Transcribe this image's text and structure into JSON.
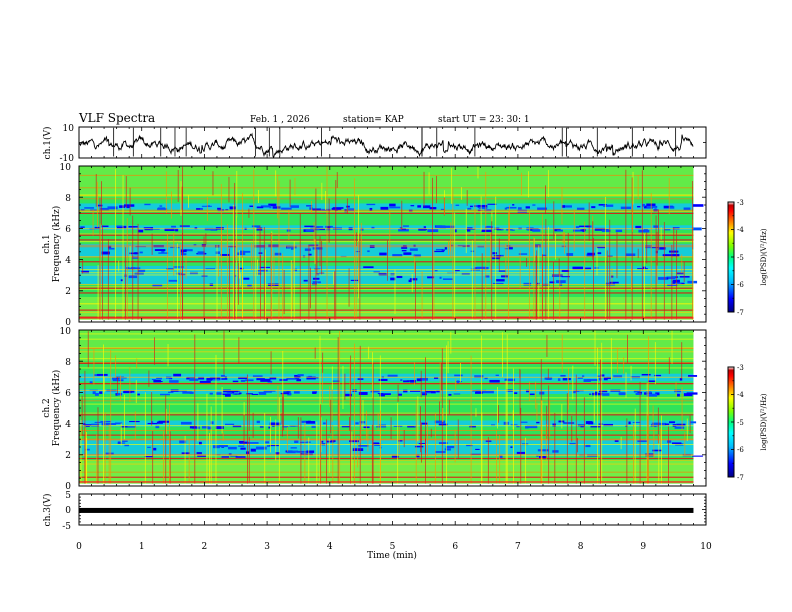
{
  "header": {
    "title": "VLF Spectra",
    "date": "Feb. 1 , 2026",
    "station": "station= KAP",
    "start": "start UT = 23: 30: 1"
  },
  "colors": {
    "spectrogram_base": "#2fe35a",
    "colormap": [
      "#000080",
      "#0000ff",
      "#00bfff",
      "#00ffff",
      "#00ff7f",
      "#7fff00",
      "#ffff00",
      "#ff7f00",
      "#ff0000",
      "#c00000",
      "#ffffff"
    ]
  },
  "chart_data": [
    {
      "name": "ch1-waveform",
      "type": "line",
      "ylabel": "ch.1(V)",
      "ylim": [
        -10,
        10
      ],
      "yticks": [
        "10",
        "-10"
      ],
      "xlim": [
        0,
        10
      ],
      "signal": "noisy voltage trace around about -2 V, swings roughly -8 to +8 V",
      "t_end_min": 9.8
    },
    {
      "name": "ch1-spectrogram",
      "type": "heatmap",
      "ylabel_1": "ch.1",
      "ylabel_2": "Frequency (kHz)",
      "ylim": [
        0,
        10
      ],
      "yticks": [
        "0",
        "2",
        "4",
        "6",
        "8",
        "10"
      ],
      "xlim": [
        0,
        10
      ],
      "t_end_min": 9.8,
      "colorbar": {
        "label": "log(PSD)(V²/Hz)",
        "range": [
          -7,
          -3
        ],
        "ticks": [
          "-3",
          "-4",
          "-5",
          "-6",
          "-7"
        ]
      },
      "blue_bands_khz": [
        [
          2.4,
          3.6
        ],
        [
          4.2,
          5.0
        ],
        [
          5.9,
          6.2
        ],
        [
          7.2,
          7.6
        ]
      ],
      "red_lines_khz": [
        0.35,
        0.8,
        1.9,
        2.2,
        3.9,
        5.3,
        5.6,
        7.0
      ]
    },
    {
      "name": "ch2-spectrogram",
      "type": "heatmap",
      "ylabel_1": "ch.2",
      "ylabel_2": "Frequency (kHz)",
      "ylim": [
        0,
        10
      ],
      "yticks": [
        "0",
        "2",
        "4",
        "6",
        "8",
        "10"
      ],
      "xlim": [
        0,
        10
      ],
      "t_end_min": 9.8,
      "colorbar": {
        "label": "log(PSD)(V²/Hz)",
        "range": [
          -7,
          -3
        ],
        "ticks": [
          "-3",
          "-4",
          "-5",
          "-6",
          "-7"
        ]
      },
      "blue_bands_khz": [
        [
          1.9,
          3.0
        ],
        [
          3.8,
          4.2
        ],
        [
          5.9,
          6.2
        ],
        [
          6.7,
          7.2
        ]
      ],
      "red_lines_khz": [
        0.6,
        1.8,
        3.3,
        4.6,
        6.6,
        7.9
      ]
    },
    {
      "name": "ch3-trace",
      "type": "line",
      "ylabel": "ch.3(V)",
      "ylim": [
        -5,
        5
      ],
      "yticks": [
        "5",
        "0",
        "-5"
      ],
      "xlim": [
        0,
        10
      ],
      "xticks": [
        "0",
        "1",
        "2",
        "3",
        "4",
        "5",
        "6",
        "7",
        "8",
        "9",
        "10"
      ],
      "xlabel": "Time (min)",
      "value_v": -0.3,
      "t_end_min": 9.8
    }
  ]
}
